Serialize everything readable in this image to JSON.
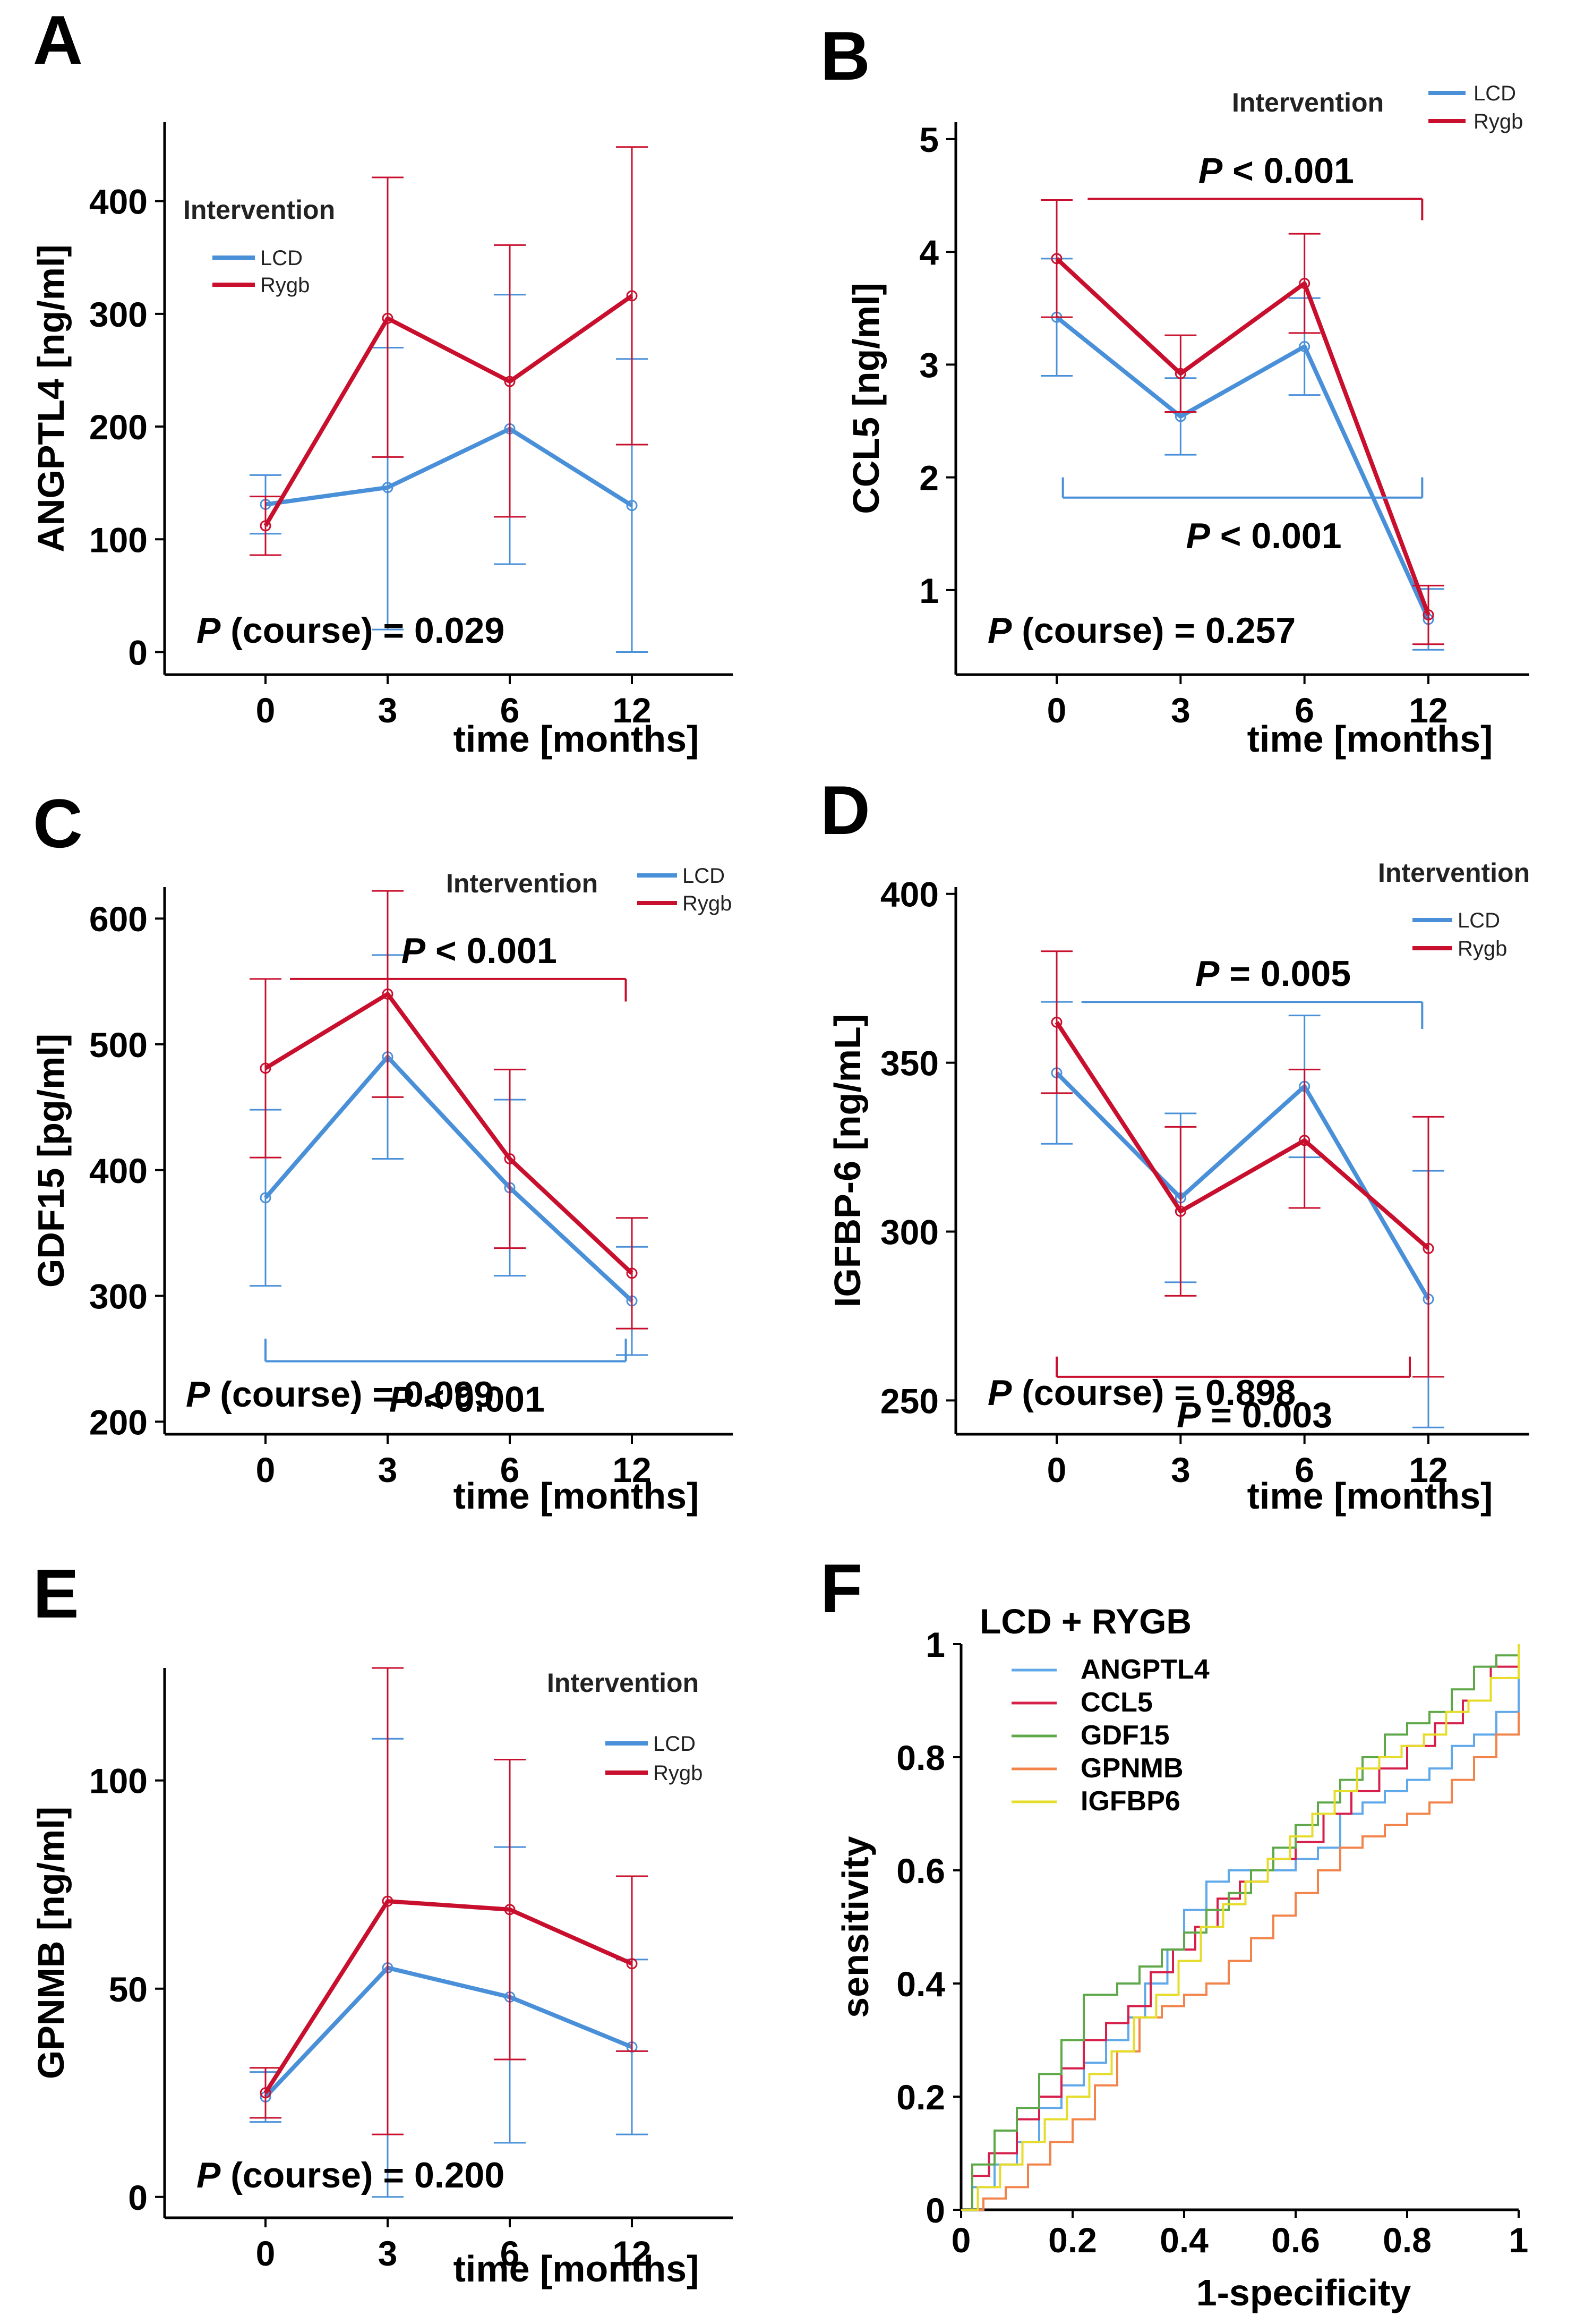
{
  "colors": {
    "LCD": "#4a90d9",
    "Rygb": "#c8102e",
    "axis": "#000000"
  },
  "chart_data": [
    {
      "panel": "A",
      "type": "line",
      "xlabel": "time [months]",
      "ylabel": "ANGPTL4 [ng/ml]",
      "categories": [
        "0",
        "3",
        "6",
        "12"
      ],
      "ylim": [
        -20,
        470
      ],
      "yticks": [
        0,
        100,
        200,
        300,
        400
      ],
      "legend_title": "Intervention",
      "legend_labels": [
        "LCD",
        "Rygb"
      ],
      "p_course": {
        "label": "P",
        "rest": " (course) = 0.029"
      },
      "series": [
        {
          "name": "LCD",
          "color": "#4a90d9",
          "values": [
            131,
            146,
            198,
            130
          ],
          "err_low": [
            105,
            20,
            78,
            0
          ],
          "err_high": [
            157,
            270,
            317,
            260
          ]
        },
        {
          "name": "Rygb",
          "color": "#c8102e",
          "values": [
            112,
            296,
            240,
            316
          ],
          "err_low": [
            86,
            173,
            120,
            184
          ],
          "err_high": [
            138,
            421,
            361,
            448
          ]
        }
      ],
      "brackets": []
    },
    {
      "panel": "B",
      "type": "line",
      "xlabel": "time [months]",
      "ylabel": "CCL5 [ng/ml]",
      "categories": [
        "0",
        "3",
        "6",
        "12"
      ],
      "ylim": [
        0.25,
        5.15
      ],
      "yticks": [
        1,
        2,
        3,
        4,
        5
      ],
      "legend_title": "Intervention",
      "legend_labels": [
        "LCD",
        "Rygb"
      ],
      "p_course": {
        "label": "P",
        "rest": " (course) = 0.257"
      },
      "series": [
        {
          "name": "LCD",
          "color": "#4a90d9",
          "values": [
            3.42,
            2.54,
            3.16,
            0.74
          ],
          "err_low": [
            2.9,
            2.2,
            2.73,
            0.47
          ],
          "err_high": [
            3.94,
            2.88,
            3.59,
            1.01
          ]
        },
        {
          "name": "Rygb",
          "color": "#c8102e",
          "values": [
            3.94,
            2.92,
            3.72,
            0.78
          ],
          "err_low": [
            3.42,
            2.58,
            3.28,
            0.52
          ],
          "err_high": [
            4.46,
            3.26,
            4.16,
            1.04
          ]
        }
      ],
      "brackets": [
        {
          "series": "Rygb",
          "text_label": "P",
          "text_rest": " < 0.001",
          "y_line": 4.47,
          "y_tick_end": 4.28,
          "x_start": 0.25,
          "x_end": 2.95,
          "side": "top"
        },
        {
          "series": "LCD",
          "text_label": "P",
          "text_rest": " < 0.001",
          "y_line": 1.82,
          "y_tick_end": 2.0,
          "x_start": 0.05,
          "x_end": 2.95,
          "side": "bottom"
        }
      ]
    },
    {
      "panel": "C",
      "type": "line",
      "xlabel": "time [months]",
      "ylabel": "GDF15 [pg/ml]",
      "categories": [
        "0",
        "3",
        "6",
        "12"
      ],
      "ylim": [
        190,
        625
      ],
      "yticks": [
        200,
        300,
        400,
        500,
        600
      ],
      "legend_title": "Intervention",
      "legend_labels": [
        "LCD",
        "Rygb"
      ],
      "p_course": {
        "label": "P",
        "rest": " (course) = 0.099"
      },
      "series": [
        {
          "name": "LCD",
          "color": "#4a90d9",
          "values": [
            378,
            490,
            386,
            296
          ],
          "err_low": [
            308,
            409,
            316,
            253
          ],
          "err_high": [
            448,
            571,
            456,
            339
          ]
        },
        {
          "name": "Rygb",
          "color": "#c8102e",
          "values": [
            481,
            540,
            409,
            318
          ],
          "err_low": [
            410,
            458,
            338,
            274
          ],
          "err_high": [
            552,
            622,
            480,
            362
          ]
        }
      ],
      "brackets": [
        {
          "series": "Rygb",
          "text_label": "P",
          "text_rest": " < 0.001",
          "y_line": 552,
          "y_tick_end": 534,
          "x_start": 0.2,
          "x_end": 2.95,
          "side": "top"
        },
        {
          "series": "LCD",
          "text_label": "P",
          "text_rest": " < 0.001",
          "y_line": 248,
          "y_tick_end": 266,
          "x_start": 0.0,
          "x_end": 2.95,
          "side": "bottom"
        }
      ]
    },
    {
      "panel": "D",
      "type": "line",
      "xlabel": "time [months]",
      "ylabel": "IGFBP-6 [ng/mL]",
      "categories": [
        "0",
        "3",
        "6",
        "12"
      ],
      "ylim": [
        240,
        402
      ],
      "yticks": [
        250,
        300,
        350,
        400
      ],
      "legend_title": "Intervention",
      "legend_labels": [
        "LCD",
        "Rygb"
      ],
      "p_course": {
        "label": "P",
        "rest": " (course) = 0.898"
      },
      "series": [
        {
          "name": "LCD",
          "color": "#4a90d9",
          "values": [
            347,
            310,
            343,
            280
          ],
          "err_low": [
            326,
            285,
            322,
            242
          ],
          "err_high": [
            368,
            335,
            364,
            318
          ]
        },
        {
          "name": "Rygb",
          "color": "#c8102e",
          "values": [
            362,
            306,
            327,
            295
          ],
          "err_low": [
            341,
            281,
            307,
            257
          ],
          "err_high": [
            383,
            331,
            348,
            334
          ]
        }
      ],
      "brackets": [
        {
          "series": "LCD",
          "text_label": "P",
          "text_rest": " = 0.005",
          "y_line": 368,
          "y_tick_end": 360,
          "x_start": 0.2,
          "x_end": 2.95,
          "side": "top"
        },
        {
          "series": "Rygb",
          "text_label": "P",
          "text_rest": " = 0.003",
          "y_line": 257,
          "y_tick_end": 263,
          "x_start": 0.0,
          "x_end": 2.85,
          "side": "bottom"
        }
      ]
    },
    {
      "panel": "E",
      "type": "line",
      "xlabel": "time [months]",
      "ylabel": "GPNMB [ng/ml]",
      "categories": [
        "0",
        "3",
        "6",
        "12"
      ],
      "ylim": [
        -5,
        127
      ],
      "yticks": [
        0,
        50,
        100
      ],
      "legend_title": "Intervention",
      "legend_labels": [
        "LCD",
        "Rygb"
      ],
      "p_course": {
        "label": "P",
        "rest": " (course) = 0.200"
      },
      "series": [
        {
          "name": "LCD",
          "color": "#4a90d9",
          "values": [
            24,
            55,
            48,
            36
          ],
          "err_low": [
            18,
            0,
            13,
            15
          ],
          "err_high": [
            30,
            110,
            84,
            57
          ]
        },
        {
          "name": "Rygb",
          "color": "#c8102e",
          "values": [
            25,
            71,
            69,
            56
          ],
          "err_low": [
            19,
            15,
            33,
            35
          ],
          "err_high": [
            31,
            127,
            105,
            77
          ]
        }
      ],
      "brackets": []
    },
    {
      "panel": "F",
      "type": "line",
      "subtype": "roc",
      "title": "LCD + RYGB",
      "xlabel": "1-specificity",
      "ylabel": "sensitivity",
      "xlim": [
        0,
        1
      ],
      "ylim": [
        0,
        1
      ],
      "xticks": [
        "0",
        "0.2",
        "0.4",
        "0.6",
        "0.8",
        "1"
      ],
      "yticks": [
        "0",
        "0.2",
        "0.4",
        "0.6",
        "0.8",
        "1"
      ],
      "series": [
        {
          "name": "ANGPTL4",
          "color": "#5fa8ea",
          "points": [
            [
              0,
              0
            ],
            [
              0.02,
              0.04
            ],
            [
              0.06,
              0.08
            ],
            [
              0.1,
              0.12
            ],
            [
              0.14,
              0.18
            ],
            [
              0.18,
              0.22
            ],
            [
              0.22,
              0.26
            ],
            [
              0.26,
              0.3
            ],
            [
              0.3,
              0.34
            ],
            [
              0.33,
              0.4
            ],
            [
              0.37,
              0.46
            ],
            [
              0.4,
              0.53
            ],
            [
              0.44,
              0.58
            ],
            [
              0.48,
              0.6
            ],
            [
              0.52,
              0.6
            ],
            [
              0.56,
              0.6
            ],
            [
              0.6,
              0.62
            ],
            [
              0.64,
              0.64
            ],
            [
              0.68,
              0.7
            ],
            [
              0.72,
              0.72
            ],
            [
              0.76,
              0.74
            ],
            [
              0.8,
              0.76
            ],
            [
              0.84,
              0.78
            ],
            [
              0.88,
              0.82
            ],
            [
              0.92,
              0.84
            ],
            [
              0.96,
              0.88
            ],
            [
              1,
              1
            ]
          ]
        },
        {
          "name": "CCL5",
          "color": "#d61f4a",
          "points": [
            [
              0,
              0
            ],
            [
              0.02,
              0.06
            ],
            [
              0.05,
              0.1
            ],
            [
              0.1,
              0.16
            ],
            [
              0.14,
              0.2
            ],
            [
              0.18,
              0.25
            ],
            [
              0.22,
              0.3
            ],
            [
              0.26,
              0.33
            ],
            [
              0.3,
              0.36
            ],
            [
              0.34,
              0.42
            ],
            [
              0.38,
              0.46
            ],
            [
              0.42,
              0.5
            ],
            [
              0.46,
              0.55
            ],
            [
              0.5,
              0.58
            ],
            [
              0.55,
              0.62
            ],
            [
              0.6,
              0.65
            ],
            [
              0.65,
              0.7
            ],
            [
              0.7,
              0.74
            ],
            [
              0.75,
              0.78
            ],
            [
              0.8,
              0.82
            ],
            [
              0.85,
              0.86
            ],
            [
              0.9,
              0.9
            ],
            [
              0.95,
              0.96
            ],
            [
              1,
              1
            ]
          ]
        },
        {
          "name": "GDF15",
          "color": "#5ea84a",
          "points": [
            [
              0,
              0
            ],
            [
              0.02,
              0.08
            ],
            [
              0.06,
              0.14
            ],
            [
              0.1,
              0.18
            ],
            [
              0.14,
              0.24
            ],
            [
              0.18,
              0.3
            ],
            [
              0.22,
              0.38
            ],
            [
              0.28,
              0.4
            ],
            [
              0.32,
              0.43
            ],
            [
              0.36,
              0.46
            ],
            [
              0.4,
              0.49
            ],
            [
              0.44,
              0.53
            ],
            [
              0.48,
              0.56
            ],
            [
              0.52,
              0.6
            ],
            [
              0.56,
              0.64
            ],
            [
              0.6,
              0.68
            ],
            [
              0.64,
              0.72
            ],
            [
              0.68,
              0.76
            ],
            [
              0.72,
              0.8
            ],
            [
              0.76,
              0.84
            ],
            [
              0.8,
              0.86
            ],
            [
              0.84,
              0.88
            ],
            [
              0.88,
              0.92
            ],
            [
              0.92,
              0.96
            ],
            [
              0.96,
              0.98
            ],
            [
              1,
              1
            ]
          ]
        },
        {
          "name": "GPNMB",
          "color": "#f2834a",
          "points": [
            [
              0,
              0
            ],
            [
              0.04,
              0.02
            ],
            [
              0.08,
              0.04
            ],
            [
              0.12,
              0.08
            ],
            [
              0.16,
              0.12
            ],
            [
              0.2,
              0.16
            ],
            [
              0.24,
              0.22
            ],
            [
              0.28,
              0.28
            ],
            [
              0.32,
              0.34
            ],
            [
              0.36,
              0.36
            ],
            [
              0.4,
              0.38
            ],
            [
              0.44,
              0.4
            ],
            [
              0.48,
              0.44
            ],
            [
              0.52,
              0.48
            ],
            [
              0.56,
              0.52
            ],
            [
              0.6,
              0.56
            ],
            [
              0.64,
              0.6
            ],
            [
              0.68,
              0.64
            ],
            [
              0.72,
              0.66
            ],
            [
              0.76,
              0.68
            ],
            [
              0.8,
              0.7
            ],
            [
              0.84,
              0.72
            ],
            [
              0.88,
              0.76
            ],
            [
              0.92,
              0.8
            ],
            [
              0.96,
              0.84
            ],
            [
              1,
              0.88
            ]
          ]
        },
        {
          "name": "IGFBP6",
          "color": "#e6dc2a",
          "points": [
            [
              0,
              0
            ],
            [
              0.03,
              0.04
            ],
            [
              0.07,
              0.08
            ],
            [
              0.11,
              0.12
            ],
            [
              0.15,
              0.16
            ],
            [
              0.19,
              0.2
            ],
            [
              0.23,
              0.24
            ],
            [
              0.27,
              0.28
            ],
            [
              0.31,
              0.34
            ],
            [
              0.35,
              0.38
            ],
            [
              0.39,
              0.44
            ],
            [
              0.43,
              0.5
            ],
            [
              0.47,
              0.54
            ],
            [
              0.51,
              0.58
            ],
            [
              0.55,
              0.62
            ],
            [
              0.59,
              0.66
            ],
            [
              0.63,
              0.7
            ],
            [
              0.67,
              0.74
            ],
            [
              0.71,
              0.78
            ],
            [
              0.75,
              0.8
            ],
            [
              0.79,
              0.82
            ],
            [
              0.83,
              0.84
            ],
            [
              0.87,
              0.88
            ],
            [
              0.91,
              0.9
            ],
            [
              0.95,
              0.94
            ],
            [
              1,
              1
            ]
          ]
        }
      ]
    }
  ]
}
